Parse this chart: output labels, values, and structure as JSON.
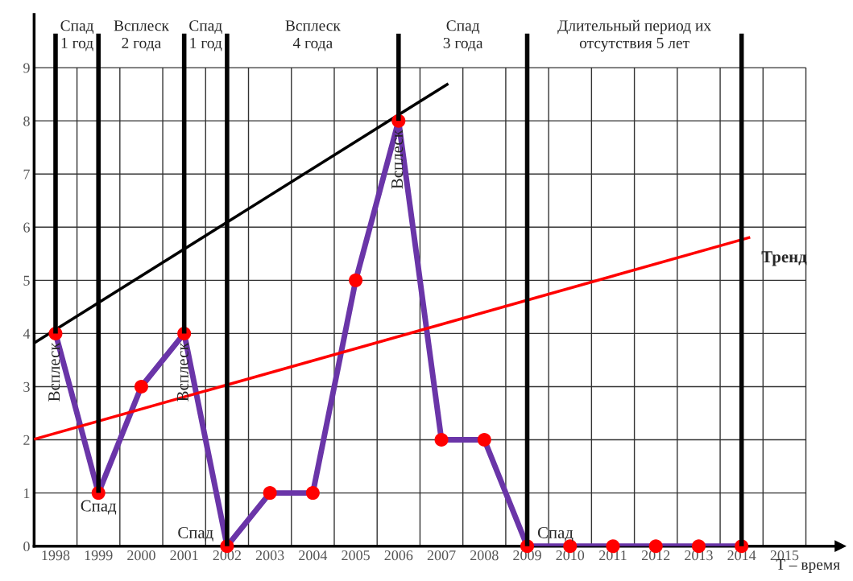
{
  "chart_data": {
    "type": "line",
    "xlabel": "T – время",
    "xlim": [
      1997.5,
      2016.3
    ],
    "ylim": [
      0,
      10
    ],
    "xticks": [
      1998,
      1999,
      2000,
      2001,
      2002,
      2003,
      2004,
      2005,
      2006,
      2007,
      2008,
      2009,
      2010,
      2011,
      2012,
      2013,
      2014,
      2015,
      {
        "value": 1998.5,
        "label": null
      },
      {
        "value": 1999.5,
        "label": null
      },
      {
        "value": 2000.5,
        "label": null
      },
      {
        "value": 2001.5,
        "label": null
      },
      {
        "value": 2002.5,
        "label": null
      },
      {
        "value": 2003.5,
        "label": null
      },
      {
        "value": 2004.5,
        "label": null
      },
      {
        "value": 2005.5,
        "label": null
      },
      {
        "value": 2006.5,
        "label": null
      },
      {
        "value": 2007.5,
        "label": null
      },
      {
        "value": 2008.5,
        "label": null
      },
      {
        "value": 2009.5,
        "label": null
      },
      {
        "value": 2010.5,
        "label": null
      },
      {
        "value": 2011.5,
        "label": null
      },
      {
        "value": 2012.5,
        "label": null
      },
      {
        "value": 2013.5,
        "label": null
      },
      {
        "value": 2014.5,
        "label": null
      },
      {
        "value": 2015.5,
        "label": null
      }
    ],
    "yticks": [
      0,
      1,
      2,
      3,
      4,
      5,
      6,
      7,
      8,
      9
    ],
    "grid": true,
    "marker": "circle",
    "line_style": "solid",
    "x": [
      1998,
      1999,
      2000,
      2001,
      2002,
      2003,
      2004,
      2005,
      2006,
      2007,
      2008,
      2009,
      2010,
      2011,
      2012,
      2013,
      2014
    ],
    "series": [
      {
        "color": "#6a35a8",
        "colors": [
          "#ff0000",
          "#ff0000",
          "#ff0000",
          "#ff0000",
          "#ff0000",
          "#ff0000",
          "#ff0000",
          "#ff0000",
          "#ff0000",
          "#ff0000",
          "#ff0000",
          "#ff0000",
          "#ff0000",
          "#ff0000",
          "#ff0000",
          "#ff0000",
          "#ff0000"
        ],
        "values": [
          4,
          1,
          3,
          4,
          0,
          1,
          1,
          5,
          8,
          2,
          2,
          0,
          0,
          0,
          0,
          0,
          0
        ]
      },
      {
        "type": "line",
        "marker": "none",
        "color": "#000000",
        "x": [
          1997.5,
          2007.16
        ],
        "values": [
          3.82,
          8.7
        ]
      },
      {
        "type": "line",
        "marker": "none",
        "color": "#ff0000",
        "x": [
          1997.5,
          2014.2
        ],
        "values": [
          2.01,
          5.81
        ]
      },
      {
        "type": "line",
        "marker": "none",
        "color": "#000000",
        "x": [
          1998,
          1998
        ],
        "values": [
          4,
          9.64
        ]
      },
      {
        "type": "line",
        "marker": "none",
        "x": [
          1999,
          1999
        ],
        "values": [
          1,
          9.64
        ],
        "color": "#010101"
      },
      {
        "type": "line",
        "marker": "none",
        "color": "#020202",
        "x": [
          2001,
          2001
        ],
        "values": [
          4,
          9.64
        ]
      },
      {
        "type": "line",
        "marker": "none",
        "color": "#030303",
        "x": [
          2002,
          2002
        ],
        "values": [
          0,
          9.64
        ]
      },
      {
        "type": "line",
        "marker": "none",
        "color": "#040404",
        "x": [
          2006,
          2006
        ],
        "values": [
          8,
          9.64
        ]
      },
      {
        "type": "line",
        "marker": "none",
        "color": "#050505",
        "x": [
          2009,
          2009
        ],
        "values": [
          0,
          9.64
        ]
      },
      {
        "type": "line",
        "marker": "none",
        "color": "#060606",
        "x": [
          2014,
          2014
        ],
        "values": [
          0,
          9.64
        ]
      }
    ],
    "annotations": [
      "Спад\n1 год",
      "Всплеск\n2 года",
      "Спад\n1 год",
      "Всплеск\n4 года",
      "Спад\n3 года",
      "Длительный период их\nотсутствия 5 лет",
      {
        "text": "Всплеск",
        "x": 1998,
        "y": 4
      },
      {
        "text": "Спад",
        "x": 1999,
        "y": 1
      },
      {
        "text": "Всплеск",
        "x": 2001,
        "y": 4
      },
      {
        "text": "Спад",
        "x": 2002,
        "y": 0
      },
      {
        "text": "Всплеск",
        "x": 2006,
        "y": 8
      },
      {
        "text": "Спад",
        "x": 2009,
        "y": 0
      },
      {
        "text": "Тренд",
        "x": 2014.2,
        "y": 5.81
      }
    ]
  }
}
